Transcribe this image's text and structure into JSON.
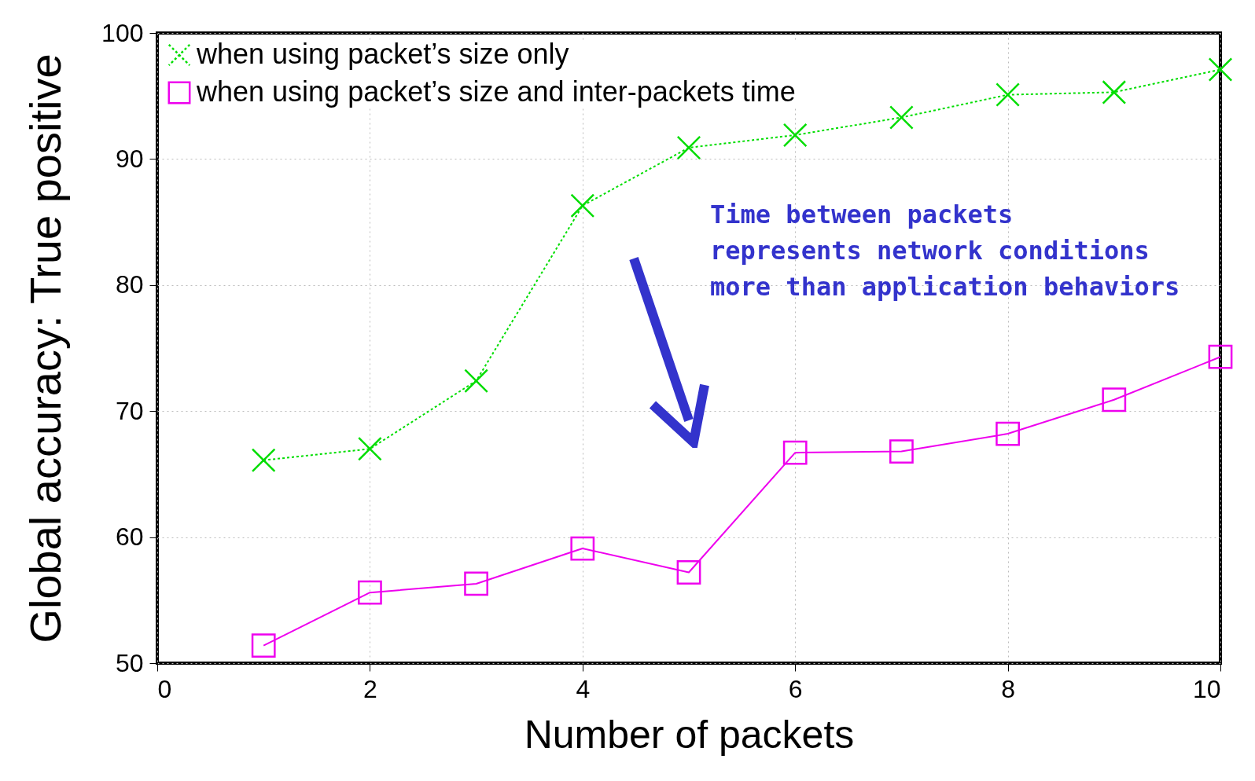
{
  "chart_data": {
    "type": "line",
    "xlabel": "Number of packets",
    "ylabel": "Global accuracy: True positive",
    "x": [
      1,
      2,
      3,
      4,
      5,
      6,
      7,
      8,
      9,
      10
    ],
    "series": [
      {
        "name": "when using packet’s size only",
        "color": "#00dd00",
        "marker": "cross",
        "line_style": "dotted",
        "values": [
          66.1,
          67.0,
          72.4,
          86.3,
          90.9,
          91.9,
          93.3,
          95.1,
          95.3,
          97.1
        ]
      },
      {
        "name": " when using packet’s size and inter-packets time",
        "color": "#ee00ee",
        "marker": "square",
        "line_style": "solid",
        "values": [
          51.4,
          55.6,
          56.3,
          59.1,
          57.2,
          66.7,
          66.8,
          68.2,
          70.9,
          74.3
        ]
      }
    ],
    "xlim": [
      0,
      10
    ],
    "xticks": [
      0,
      2,
      4,
      6,
      8,
      10
    ],
    "ylim": [
      50,
      100
    ],
    "yticks": [
      50,
      60,
      70,
      80,
      90,
      100
    ],
    "grid": true,
    "legend": "top left",
    "annotations": [
      "Time between packets\nrepresents network conditions\nmore than application behaviors"
    ]
  }
}
